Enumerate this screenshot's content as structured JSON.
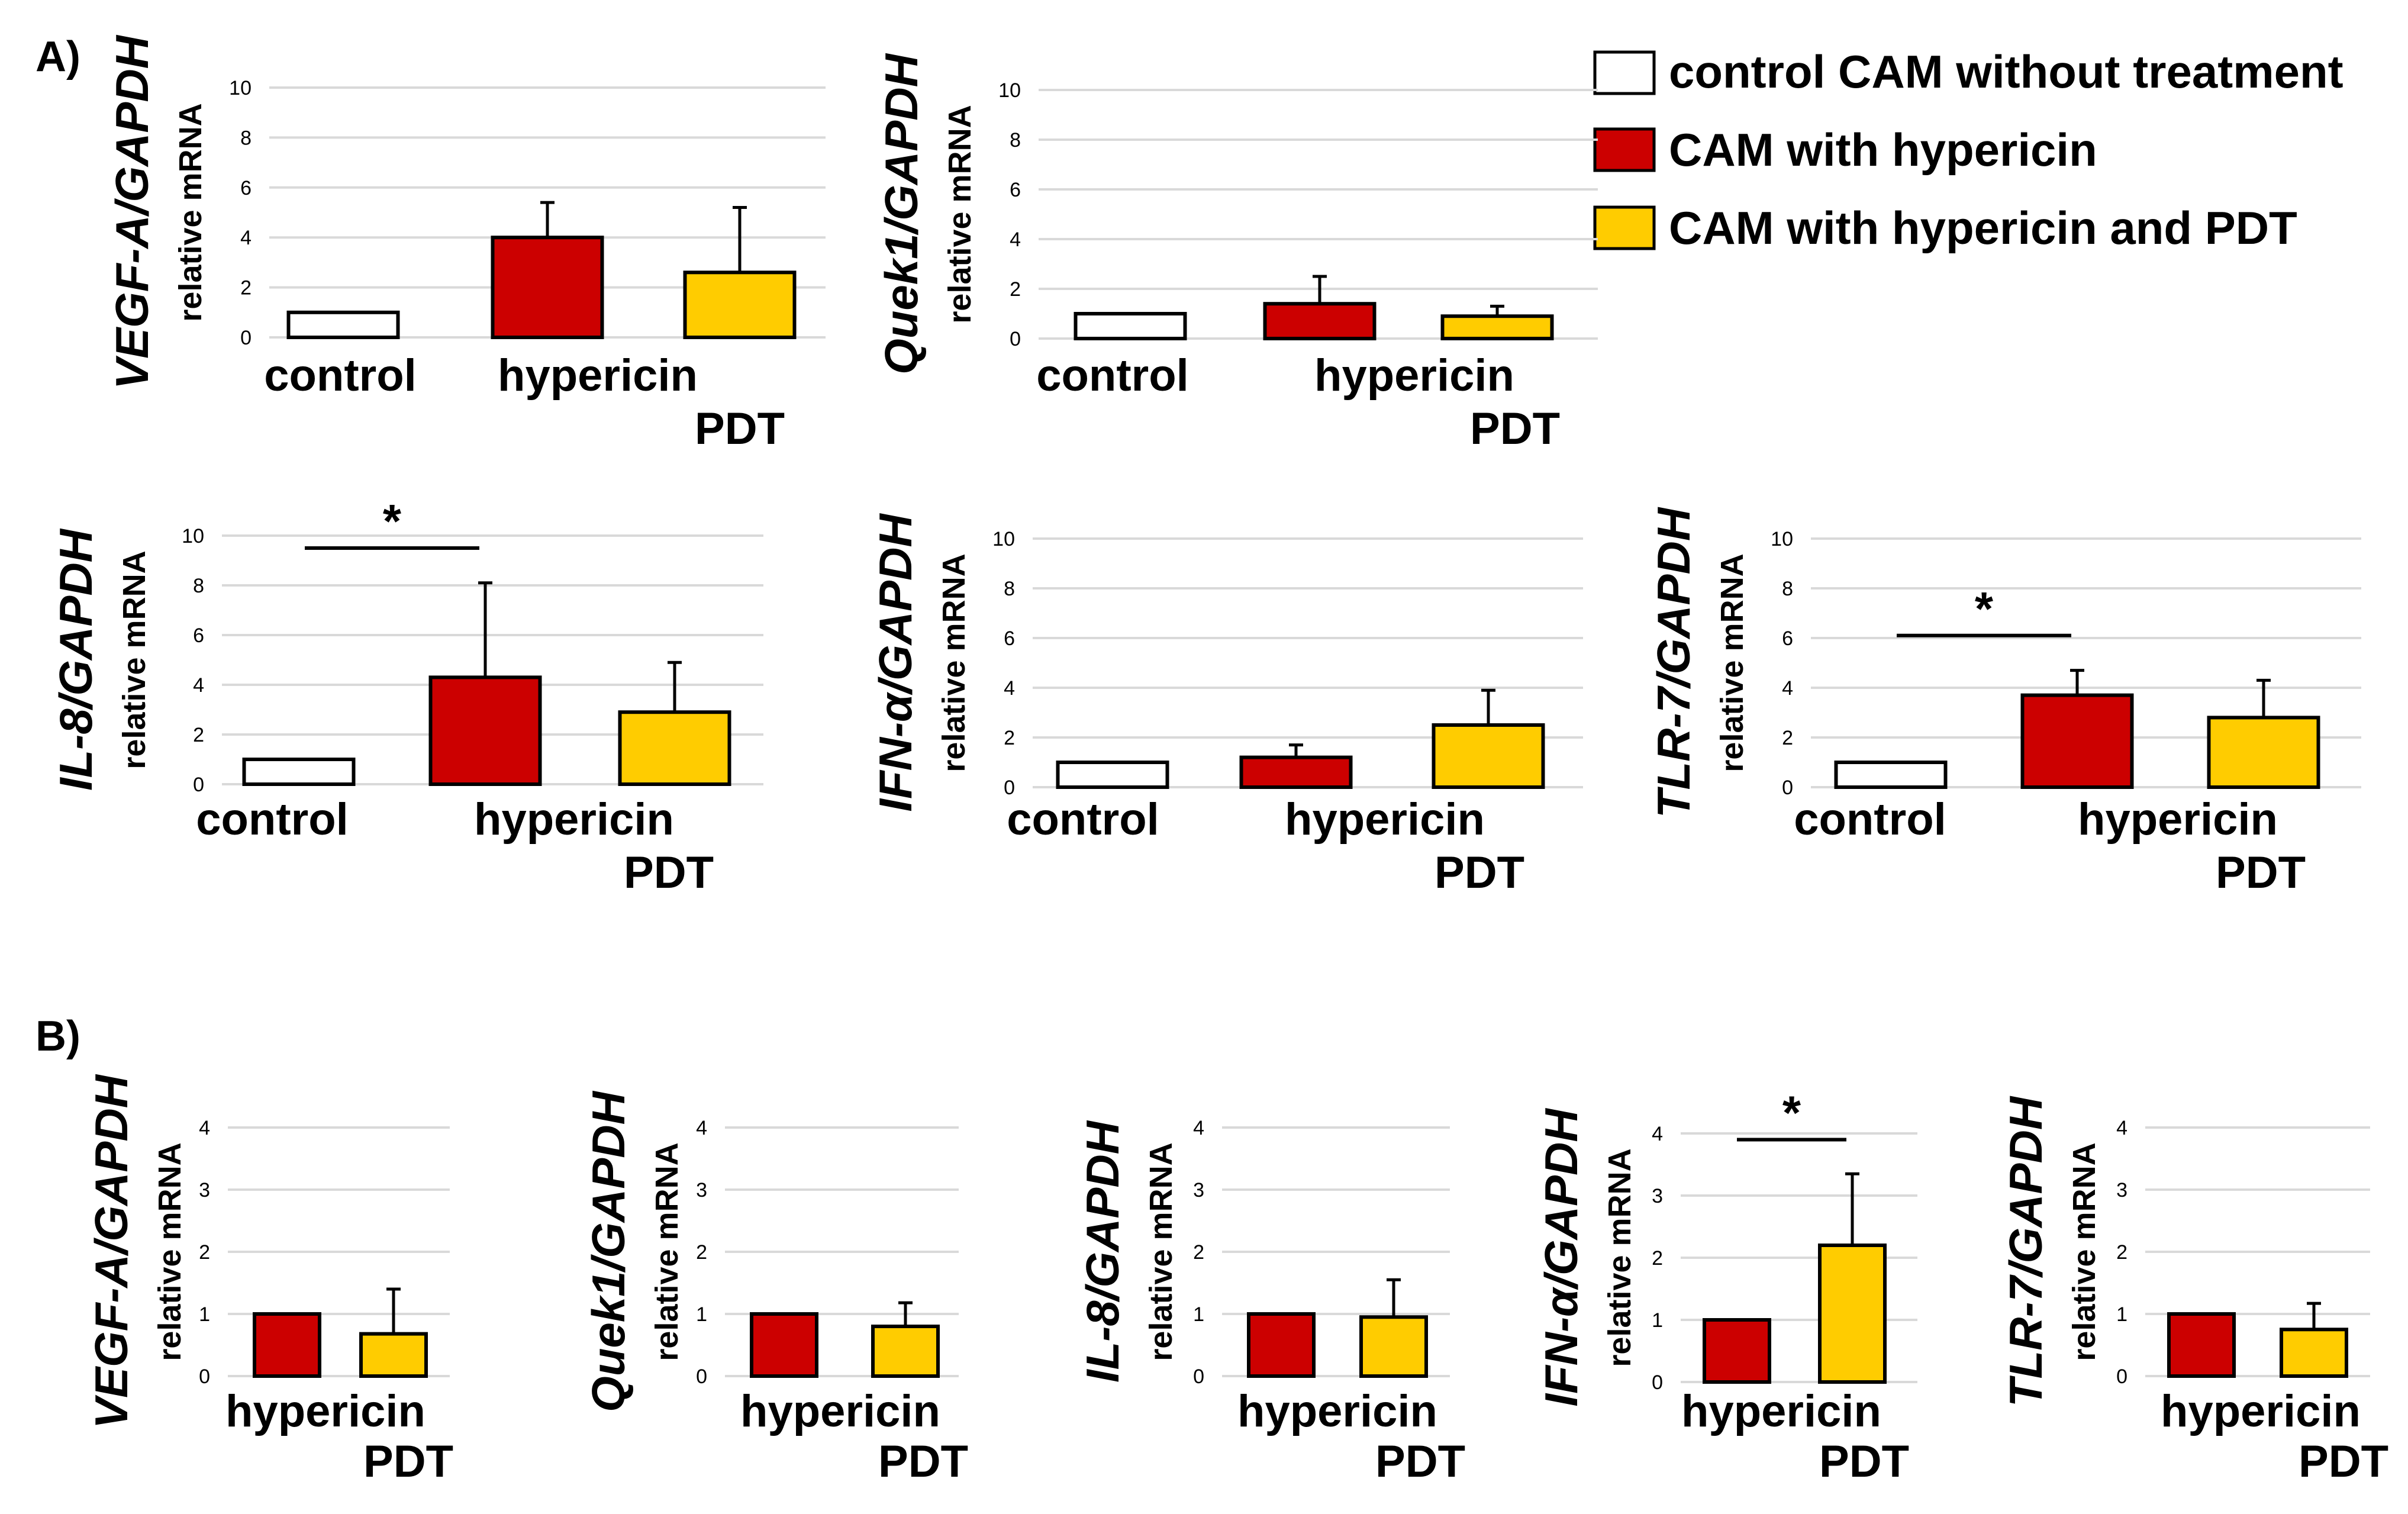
{
  "panel_labels": {
    "a": "A)",
    "b": "B)"
  },
  "legend": [
    {
      "label": "control CAM without treatment",
      "color": "#ffffff"
    },
    {
      "label": "CAM with hypericin",
      "color": "#cc0000"
    },
    {
      "label": "CAM with hypericin and PDT",
      "color": "#ffcc00"
    }
  ],
  "colors": {
    "control": "#ffffff",
    "hypericin": "#cc0000",
    "pdt": "#ffcc00",
    "axis": "#000000",
    "grid": "#d9d9d9"
  },
  "chart_data": [
    {
      "id": "a1",
      "type": "bar",
      "gene": "VEGF-A/GAPDH",
      "ylabel": "relative mRNA",
      "ylim": [
        0,
        10
      ],
      "ticks": [
        0,
        2,
        4,
        6,
        8,
        10
      ],
      "categories": [
        "control",
        "hypericin",
        "PDT"
      ],
      "values": [
        1.0,
        4.0,
        2.6
      ],
      "errors": [
        0,
        1.4,
        2.6
      ],
      "significance": []
    },
    {
      "id": "a2",
      "type": "bar",
      "gene": "Quek1/GAPDH",
      "ylabel": "relative mRNA",
      "ylim": [
        0,
        10
      ],
      "ticks": [
        0,
        2,
        4,
        6,
        8,
        10
      ],
      "categories": [
        "control",
        "hypericin",
        "PDT"
      ],
      "values": [
        1.0,
        1.4,
        0.9
      ],
      "errors": [
        0,
        1.1,
        0.4
      ],
      "significance": []
    },
    {
      "id": "a3",
      "type": "bar",
      "gene": "IL-8/GAPDH",
      "ylabel": "relative mRNA",
      "ylim": [
        0,
        10
      ],
      "ticks": [
        0,
        2,
        4,
        6,
        8,
        10
      ],
      "categories": [
        "control",
        "hypericin",
        "PDT"
      ],
      "values": [
        1.0,
        4.3,
        2.9
      ],
      "errors": [
        0,
        3.8,
        2.0
      ],
      "significance": [
        {
          "from": 0,
          "to": 1,
          "y": 9.5,
          "mark": "*"
        }
      ]
    },
    {
      "id": "a4",
      "type": "bar",
      "gene": "IFN-α/GAPDH",
      "ylabel": "relative mRNA",
      "ylim": [
        0,
        10
      ],
      "ticks": [
        0,
        2,
        4,
        6,
        8,
        10
      ],
      "categories": [
        "control",
        "hypericin",
        "PDT"
      ],
      "values": [
        1.0,
        1.2,
        2.5
      ],
      "errors": [
        0,
        0.5,
        1.4
      ],
      "significance": []
    },
    {
      "id": "a5",
      "type": "bar",
      "gene": "TLR-7/GAPDH",
      "ylabel": "relative mRNA",
      "ylim": [
        0,
        10
      ],
      "ticks": [
        0,
        2,
        4,
        6,
        8,
        10
      ],
      "categories": [
        "control",
        "hypericin",
        "PDT"
      ],
      "values": [
        1.0,
        3.7,
        2.8
      ],
      "errors": [
        0,
        1.0,
        1.5
      ],
      "significance": [
        {
          "from": 0,
          "to": 1,
          "y": 6.1,
          "mark": "*"
        }
      ]
    },
    {
      "id": "b1",
      "type": "bar",
      "gene": "VEGF-A/GAPDH",
      "ylabel": "relative mRNA",
      "ylim": [
        0,
        4
      ],
      "ticks": [
        0,
        1,
        2,
        3,
        4
      ],
      "categories": [
        "hypericin",
        "PDT"
      ],
      "values": [
        1.0,
        0.68
      ],
      "errors": [
        0,
        0.72
      ],
      "significance": []
    },
    {
      "id": "b2",
      "type": "bar",
      "gene": "Quek1/GAPDH",
      "ylabel": "relative mRNA",
      "ylim": [
        0,
        4
      ],
      "ticks": [
        0,
        1,
        2,
        3,
        4
      ],
      "categories": [
        "hypericin",
        "PDT"
      ],
      "values": [
        1.0,
        0.8
      ],
      "errors": [
        0,
        0.38
      ],
      "significance": []
    },
    {
      "id": "b3",
      "type": "bar",
      "gene": "IL-8/GAPDH",
      "ylabel": "relative mRNA",
      "ylim": [
        0,
        4
      ],
      "ticks": [
        0,
        1,
        2,
        3,
        4
      ],
      "categories": [
        "hypericin",
        "PDT"
      ],
      "values": [
        1.0,
        0.95
      ],
      "errors": [
        0,
        0.6
      ],
      "significance": []
    },
    {
      "id": "b4",
      "type": "bar",
      "gene": "IFN-α/GAPDH",
      "ylabel": "relative mRNA",
      "ylim": [
        0,
        4
      ],
      "ticks": [
        0,
        1,
        2,
        3,
        4
      ],
      "categories": [
        "hypericin",
        "PDT"
      ],
      "values": [
        1.0,
        2.2
      ],
      "errors": [
        0,
        1.15
      ],
      "significance": [
        {
          "from": 0,
          "to": 1,
          "y": 3.9,
          "mark": "*"
        }
      ]
    },
    {
      "id": "b5",
      "type": "bar",
      "gene": "TLR-7/GAPDH",
      "ylabel": "relative mRNA",
      "ylim": [
        0,
        4
      ],
      "ticks": [
        0,
        1,
        2,
        3,
        4
      ],
      "categories": [
        "hypericin",
        "PDT"
      ],
      "values": [
        1.0,
        0.75
      ],
      "errors": [
        0,
        0.42
      ],
      "significance": []
    }
  ]
}
